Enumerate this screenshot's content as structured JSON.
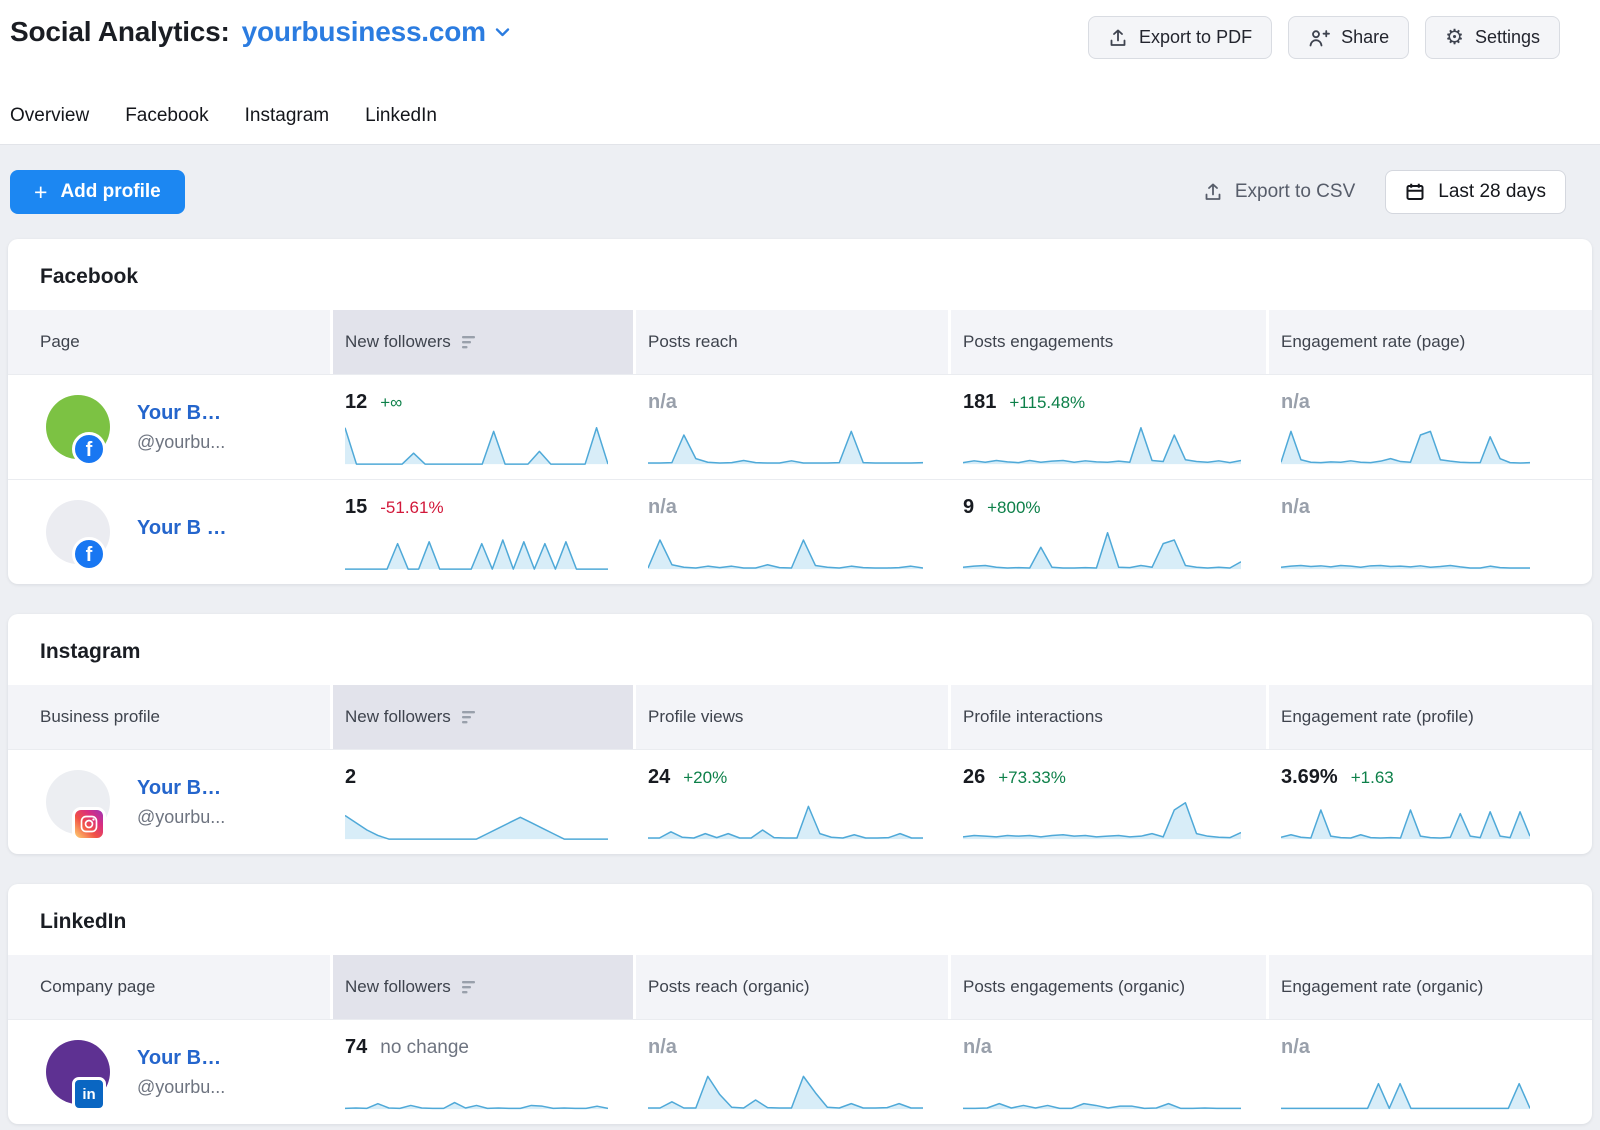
{
  "header": {
    "title": "Social Analytics:",
    "project": "yourbusiness.com",
    "export_pdf": "Export to PDF",
    "share": "Share",
    "settings": "Settings"
  },
  "tabs": [
    {
      "label": "Overview"
    },
    {
      "label": "Facebook"
    },
    {
      "label": "Instagram"
    },
    {
      "label": "LinkedIn"
    }
  ],
  "toolbar": {
    "add_profile": "Add profile",
    "export_csv": "Export to CSV",
    "date_range": "Last 28 days"
  },
  "icons": {
    "plus": "+",
    "gear": "⚙",
    "facebook_glyph": "f",
    "linkedin_glyph": "in"
  },
  "theme": {
    "accent_blue": "#2b7ce0",
    "name_blue": "#2465cc",
    "primary_button_blue": "#1c87f2",
    "green": "#0d8049",
    "red": "#d2183a",
    "neutral_gray": "#6e7480",
    "na_gray": "#99a0ab",
    "spark_stroke": "#4fa9d8",
    "spark_fill": "#d8edf8",
    "facebook_blue": "#1877f2",
    "linkedin_blue": "#0a66c2"
  },
  "sections": [
    {
      "title": "Facebook",
      "columns": [
        "Page",
        "New followers",
        "Posts reach",
        "Posts engagements",
        "Engagement rate (page)"
      ],
      "sorted_column": "New followers",
      "rows": [
        {
          "name": "Your B…",
          "handle": "@yourbu...",
          "network": "facebook",
          "avatar_color": "#7cc243",
          "metrics": [
            {
              "value": "12",
              "change": "+∞",
              "change_class": "up",
              "value_class": "",
              "spark": [
                10,
                0,
                0,
                0,
                0,
                0,
                3,
                0,
                0,
                0,
                0,
                0,
                0,
                9,
                0,
                0,
                0,
                3.5,
                0,
                0,
                0,
                0,
                10,
                0
              ]
            },
            {
              "value": "n/a",
              "change": "",
              "change_class": "",
              "value_class": "na",
              "spark": [
                0.3,
                0.3,
                0.4,
                8,
                1.5,
                0.5,
                0.3,
                0.4,
                1,
                0.4,
                0.3,
                0.3,
                0.9,
                0.3,
                0.3,
                0.3,
                0.4,
                9,
                0.4,
                0.3,
                0.3,
                0.3,
                0.3,
                0.4
              ]
            },
            {
              "value": "181",
              "change": "+115.48%",
              "change_class": "up",
              "value_class": "",
              "spark": [
                0.4,
                0.9,
                0.5,
                1,
                0.6,
                0.4,
                1,
                0.5,
                0.8,
                1,
                0.5,
                0.9,
                0.6,
                0.5,
                0.8,
                0.5,
                10,
                1,
                0.7,
                8,
                1.2,
                0.7,
                0.5,
                0.9,
                0.4,
                1
              ]
            },
            {
              "value": "n/a",
              "change": "",
              "change_class": "",
              "value_class": "na",
              "spark": [
                0.5,
                9,
                1.2,
                0.5,
                0.4,
                0.6,
                0.5,
                0.9,
                0.5,
                0.4,
                0.8,
                1.5,
                0.7,
                0.5,
                8,
                9,
                1.2,
                0.8,
                0.5,
                0.4,
                0.4,
                7.5,
                1.5,
                0.4,
                0.3,
                0.4
              ]
            }
          ]
        },
        {
          "name": "Your B …",
          "handle": "",
          "network": "facebook",
          "avatar_color": "#ebecf1",
          "metrics": [
            {
              "value": "15",
              "change": "-51.61%",
              "change_class": "down",
              "value_class": "",
              "spark": [
                0,
                0,
                0,
                0,
                0,
                7,
                0,
                0,
                7.5,
                0,
                0,
                0,
                0,
                7,
                0,
                8,
                0,
                7.5,
                0,
                7,
                0,
                7.5,
                0,
                0,
                0,
                0
              ]
            },
            {
              "value": "n/a",
              "change": "",
              "change_class": "",
              "value_class": "na",
              "spark": [
                0.3,
                8,
                1.2,
                0.5,
                0.3,
                0.8,
                0.4,
                0.8,
                0.3,
                0.3,
                1.2,
                0.4,
                0.3,
                8,
                1,
                0.5,
                0.3,
                0.8,
                0.4,
                0.3,
                0.3,
                0.4,
                0.8,
                0.3
              ]
            },
            {
              "value": "9",
              "change": "+800%",
              "change_class": "up",
              "value_class": "",
              "spark": [
                0.5,
                0.8,
                1,
                0.5,
                0.3,
                0.4,
                0.3,
                6,
                0.5,
                0.3,
                0.3,
                0.4,
                0.3,
                10,
                0.5,
                0.4,
                1,
                0.5,
                7,
                8,
                1,
                0.5,
                0.3,
                0.5,
                0.3,
                2
              ]
            },
            {
              "value": "n/a",
              "change": "",
              "change_class": "",
              "value_class": "na",
              "spark": [
                0.5,
                0.8,
                1,
                0.7,
                0.9,
                0.6,
                1,
                0.8,
                0.5,
                0.9,
                1,
                0.7,
                0.8,
                0.6,
                0.9,
                0.5,
                0.7,
                1,
                0.6,
                0.3,
                0.3,
                0.8,
                0.4,
                0.3,
                0.3,
                0.3
              ]
            }
          ]
        }
      ]
    },
    {
      "title": "Instagram",
      "columns": [
        "Business profile",
        "New followers",
        "Profile views",
        "Profile interactions",
        "Engagement rate (profile)"
      ],
      "sorted_column": "New followers",
      "rows": [
        {
          "name": "Your B…",
          "handle": "@yourbu...",
          "network": "instagram",
          "avatar_color": "#eceef2",
          "metrics": [
            {
              "value": "2",
              "change": "",
              "change_class": "",
              "value_class": "",
              "spark": [
                6.5,
                4.5,
                2.5,
                1,
                0,
                0,
                0,
                0,
                0,
                0,
                0,
                0,
                0,
                1.5,
                3,
                4.5,
                6,
                4.5,
                3,
                1.5,
                0,
                0,
                0,
                0,
                0
              ]
            },
            {
              "value": "24",
              "change": "+20%",
              "change_class": "up",
              "value_class": "",
              "spark": [
                0.3,
                0.3,
                2,
                0.5,
                0.3,
                1.5,
                0.4,
                1.5,
                0.3,
                0.3,
                2.5,
                0.4,
                0.3,
                0.3,
                9,
                1.5,
                0.5,
                0.3,
                1.2,
                0.3,
                0.3,
                0.4,
                1.5,
                0.3,
                0.3
              ]
            },
            {
              "value": "26",
              "change": "+73.33%",
              "change_class": "up",
              "value_class": "",
              "spark": [
                0.6,
                1,
                0.8,
                0.6,
                1,
                0.8,
                1,
                0.6,
                1,
                1.2,
                0.8,
                1,
                0.6,
                0.8,
                1,
                0.6,
                0.8,
                1.5,
                0.6,
                8,
                10,
                1.5,
                0.8,
                0.5,
                0.4,
                1.8
              ]
            },
            {
              "value": "3.69%",
              "change": "+1.63",
              "change_class": "up",
              "value_class": "",
              "spark": [
                0.5,
                1.2,
                0.5,
                0.3,
                8,
                0.8,
                0.4,
                0.3,
                1.2,
                0.4,
                0.3,
                0.4,
                0.3,
                8,
                0.8,
                0.4,
                0.3,
                0.5,
                7,
                0.8,
                0.4,
                7.5,
                0.8,
                0.4,
                7.5,
                0.8
              ]
            }
          ]
        }
      ]
    },
    {
      "title": "LinkedIn",
      "columns": [
        "Company page",
        "New followers",
        "Posts reach (organic)",
        "Posts engagements (organic)",
        "Engagement rate (organic)"
      ],
      "sorted_column": "New followers",
      "rows": [
        {
          "name": "Your B…",
          "handle": "@yourbu...",
          "network": "linkedin",
          "avatar_color": "#5e3192",
          "metrics": [
            {
              "value": "74",
              "change": "no change",
              "change_class": "neutral",
              "value_class": "",
              "spark": [
                0.2,
                0.3,
                0.2,
                1.5,
                0.3,
                0.2,
                1,
                0.3,
                0.2,
                0.2,
                1.8,
                0.3,
                1,
                0.2,
                0.3,
                0.2,
                0.2,
                1,
                0.8,
                0.2,
                0.3,
                0.2,
                0.2,
                0.8,
                0.2
              ]
            },
            {
              "value": "n/a",
              "change": "",
              "change_class": "",
              "value_class": "na",
              "spark": [
                0.3,
                0.3,
                2,
                0.3,
                0.3,
                9,
                4,
                0.5,
                0.3,
                2.5,
                0.4,
                0.3,
                0.3,
                9,
                4.5,
                0.5,
                0.3,
                1.5,
                0.3,
                0.3,
                0.4,
                1.5,
                0.3,
                0.3
              ]
            },
            {
              "value": "n/a",
              "change": "",
              "change_class": "",
              "value_class": "na",
              "spark": [
                0.2,
                0.2,
                0.3,
                1.5,
                0.3,
                1,
                0.3,
                1,
                0.2,
                0.2,
                1.5,
                1,
                0.3,
                0.8,
                0.8,
                0.2,
                0.3,
                1.5,
                0.2,
                0.2,
                0.3,
                0.2,
                0.2,
                0.2
              ]
            },
            {
              "value": "n/a",
              "change": "",
              "change_class": "",
              "value_class": "na",
              "spark": [
                0.2,
                0.2,
                0.2,
                0.2,
                0.2,
                0.2,
                0.2,
                0.2,
                0.2,
                7,
                0.2,
                7,
                0.2,
                0.2,
                0.2,
                0.2,
                0.2,
                0.2,
                0.2,
                0.2,
                0.2,
                0.2,
                7,
                0.2
              ]
            }
          ]
        }
      ]
    }
  ]
}
